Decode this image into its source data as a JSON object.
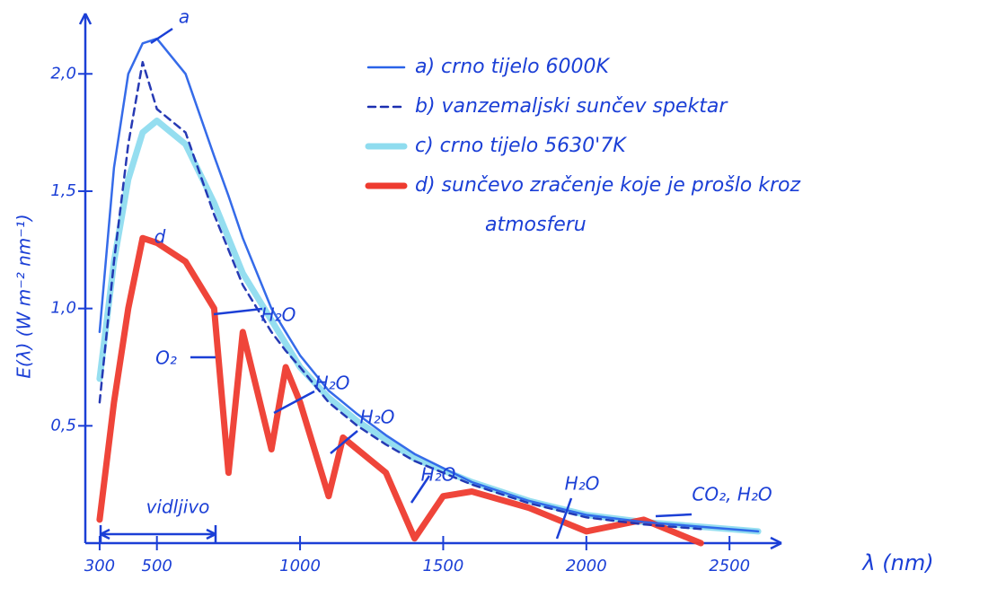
{
  "chart_data": {
    "type": "line",
    "x_label": "λ (nm)",
    "y_label": "E(λ) (W m⁻² nm⁻¹)",
    "x": [
      300,
      350,
      400,
      450,
      500,
      600,
      700,
      750,
      800,
      900,
      950,
      1000,
      1100,
      1150,
      1200,
      1300,
      1400,
      1500,
      1600,
      1800,
      2000,
      2200,
      2400,
      2600
    ],
    "series": [
      {
        "name": "a) crno tijelo 6000K",
        "color": "#2a63e8",
        "style": "solid",
        "values": [
          0.9,
          1.6,
          2.0,
          2.13,
          2.15,
          2.0,
          1.65,
          1.48,
          1.3,
          1.0,
          0.9,
          0.8,
          0.65,
          0.6,
          0.55,
          0.46,
          0.38,
          0.32,
          0.26,
          0.18,
          0.12,
          0.09,
          0.07,
          0.05
        ]
      },
      {
        "name": "b) vanzemaljski sunčev spektar",
        "color": "#1b2fb0",
        "style": "dashed",
        "values": [
          0.6,
          1.2,
          1.7,
          2.05,
          1.85,
          1.75,
          1.4,
          1.25,
          1.1,
          0.9,
          0.82,
          0.75,
          0.6,
          0.55,
          0.5,
          0.42,
          0.35,
          0.3,
          0.25,
          0.17,
          0.11,
          0.08,
          0.06,
          null
        ]
      },
      {
        "name": "c) crno tijelo 5630'7K",
        "color": "#8fdcef",
        "style": "thick",
        "values": [
          0.7,
          1.2,
          1.55,
          1.75,
          1.8,
          1.7,
          1.45,
          1.3,
          1.15,
          0.95,
          0.85,
          0.75,
          0.62,
          0.57,
          0.52,
          0.44,
          0.36,
          0.31,
          0.26,
          0.18,
          0.12,
          0.09,
          0.07,
          0.05
        ]
      },
      {
        "name": "d) sunčevo zračenje koje je prošlo kroz atmosferu",
        "color": "#ee3b2f",
        "style": "thick",
        "values": [
          0.1,
          0.6,
          1.0,
          1.3,
          1.28,
          1.2,
          1.0,
          0.3,
          0.9,
          0.4,
          0.75,
          0.6,
          0.2,
          0.45,
          0.4,
          0.3,
          0.02,
          0.2,
          0.22,
          0.15,
          0.05,
          0.1,
          0.0,
          null
        ]
      }
    ],
    "annotations": [
      "a",
      "d",
      "H₂O",
      "O₂",
      "H₂O",
      "H₂O",
      "H₂O",
      "H₂O",
      "CO₂, H₂O",
      "vidljivo"
    ],
    "xlim": [
      250,
      2650
    ],
    "ylim": [
      0,
      2.2
    ],
    "xticks": [
      300,
      500,
      1000,
      1500,
      2000,
      2500
    ],
    "yticks": [
      {
        "value": 0.5,
        "label": "0,5"
      },
      {
        "value": 1.0,
        "label": "1,0"
      },
      {
        "value": 1.5,
        "label": "1,5"
      },
      {
        "value": 2.0,
        "label": "2,0"
      }
    ],
    "legend": "upper-right"
  }
}
